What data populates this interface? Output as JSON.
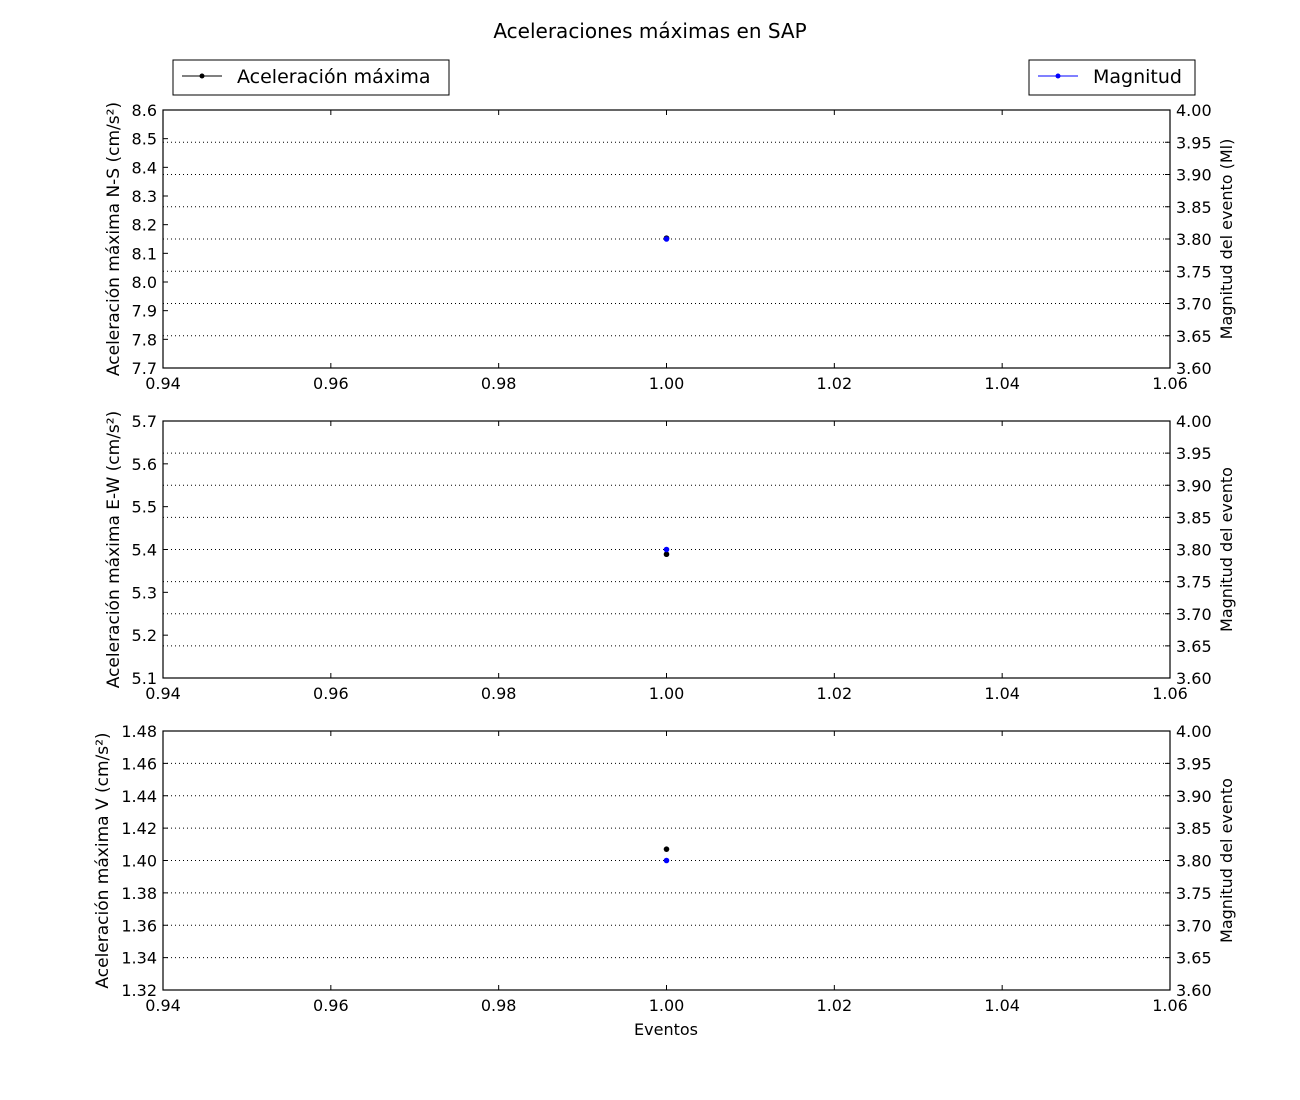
{
  "chart_data": {
    "type": "scatter",
    "title": "Aceleraciones máximas en SAP",
    "legend": [
      {
        "label": "Aceleración máxima",
        "color": "#000000",
        "placement": "top-left"
      },
      {
        "label": "Magnitud",
        "color": "#0000ff",
        "placement": "top-right"
      }
    ],
    "xlabel": "Eventos",
    "xlim": [
      0.94,
      1.06
    ],
    "xticks": [
      "0.94",
      "0.96",
      "0.98",
      "1.00",
      "1.02",
      "1.04",
      "1.06"
    ],
    "grid": "dotted horizontal lines at right-axis ticks",
    "subplots": [
      {
        "ylabel": "Aceleración máxima N-S (cm/s²)",
        "ylim": [
          7.7,
          8.6
        ],
        "yticks": [
          "7.7",
          "7.8",
          "7.9",
          "8.0",
          "8.1",
          "8.2",
          "8.3",
          "8.4",
          "8.5",
          "8.6"
        ],
        "y2label": "Magnitud del evento (Ml)",
        "y2lim": [
          3.6,
          4.0
        ],
        "y2ticks": [
          "3.60",
          "3.65",
          "3.70",
          "3.75",
          "3.80",
          "3.85",
          "3.90",
          "3.95",
          "4.00"
        ],
        "series": [
          {
            "name": "Aceleración máxima",
            "color": "#000000",
            "axis": "left",
            "x": [
              1.0
            ],
            "y": [
              8.153
            ]
          },
          {
            "name": "Magnitud",
            "color": "#0000ff",
            "axis": "right",
            "x": [
              1.0
            ],
            "y": [
              3.8
            ]
          }
        ]
      },
      {
        "ylabel": "Aceleración máxima E-W (cm/s²)",
        "ylim": [
          5.1,
          5.7
        ],
        "yticks": [
          "5.1",
          "5.2",
          "5.3",
          "5.4",
          "5.5",
          "5.6",
          "5.7"
        ],
        "y2label": "Magnitud del evento",
        "y2lim": [
          3.6,
          4.0
        ],
        "y2ticks": [
          "3.60",
          "3.65",
          "3.70",
          "3.75",
          "3.80",
          "3.85",
          "3.90",
          "3.95",
          "4.00"
        ],
        "series": [
          {
            "name": "Aceleración máxima",
            "color": "#000000",
            "axis": "left",
            "x": [
              1.0
            ],
            "y": [
              5.389
            ]
          },
          {
            "name": "Magnitud",
            "color": "#0000ff",
            "axis": "right",
            "x": [
              1.0
            ],
            "y": [
              3.8
            ]
          }
        ]
      },
      {
        "ylabel": "Aceleración máxima V (cm/s²)",
        "ylim": [
          1.32,
          1.48
        ],
        "yticks": [
          "1.32",
          "1.34",
          "1.36",
          "1.38",
          "1.40",
          "1.42",
          "1.44",
          "1.46",
          "1.48"
        ],
        "y2label": "Magnitud del evento",
        "y2lim": [
          3.6,
          4.0
        ],
        "y2ticks": [
          "3.60",
          "3.65",
          "3.70",
          "3.75",
          "3.80",
          "3.85",
          "3.90",
          "3.95",
          "4.00"
        ],
        "series": [
          {
            "name": "Aceleración máxima",
            "color": "#000000",
            "axis": "left",
            "x": [
              1.0
            ],
            "y": [
              1.407
            ]
          },
          {
            "name": "Magnitud",
            "color": "#0000ff",
            "axis": "right",
            "x": [
              1.0
            ],
            "y": [
              3.8
            ]
          }
        ]
      }
    ]
  }
}
